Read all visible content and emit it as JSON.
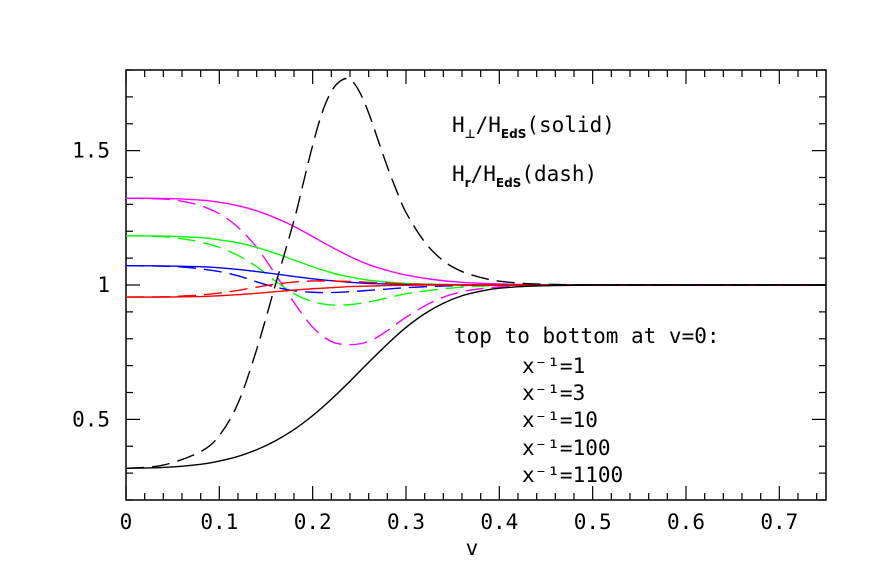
{
  "chart_data": {
    "type": "line",
    "xlabel": "v",
    "ylabel": "",
    "xlim": [
      0,
      0.75
    ],
    "ylim": [
      0.2,
      1.8
    ],
    "x_ticks": [
      "0",
      "0.1",
      "0.2",
      "0.3",
      "0.4",
      "0.5",
      "0.6",
      "0.7"
    ],
    "y_ticks": [
      "0.5",
      "1",
      "1.5"
    ],
    "grid": false,
    "legend": {
      "placement": "right",
      "heading": "top to bottom at v=0:",
      "entries": [
        "x⁻¹=1",
        "x⁻¹=3",
        "x⁻¹=10",
        "x⁻¹=100",
        "x⁻¹=1100"
      ]
    },
    "annotations": {
      "solid": {
        "main": "H",
        "main_sub": "⊥",
        "mid": "/H",
        "den_sub": "EdS",
        "tail": "(solid)"
      },
      "dash": {
        "main": "H",
        "main_sub": "r",
        "mid": "/H",
        "den_sub": "EdS",
        "tail": "(dash)"
      }
    },
    "series": [
      {
        "color": "#ff00ff",
        "dash": false,
        "x": [
          0,
          0.04,
          0.08,
          0.1,
          0.12,
          0.14,
          0.16,
          0.18,
          0.2,
          0.22,
          0.24,
          0.26,
          0.28,
          0.3,
          0.33,
          0.36,
          0.4,
          0.45,
          0.5,
          0.6,
          0.75
        ],
        "y": [
          1.323,
          1.322,
          1.316,
          1.308,
          1.295,
          1.276,
          1.25,
          1.218,
          1.18,
          1.142,
          1.106,
          1.076,
          1.054,
          1.037,
          1.02,
          1.01,
          1.004,
          1.001,
          1.0,
          1.0,
          1.0
        ]
      },
      {
        "color": "#ff00ff",
        "dash": true,
        "x": [
          0,
          0.04,
          0.06,
          0.08,
          0.1,
          0.12,
          0.14,
          0.16,
          0.18,
          0.2,
          0.22,
          0.24,
          0.26,
          0.28,
          0.3,
          0.33,
          0.36,
          0.4,
          0.45,
          0.5,
          0.75
        ],
        "y": [
          1.323,
          1.32,
          1.312,
          1.295,
          1.265,
          1.215,
          1.14,
          1.04,
          0.935,
          0.843,
          0.79,
          0.778,
          0.79,
          0.83,
          0.88,
          0.94,
          0.975,
          0.993,
          0.999,
          1.0,
          1.0
        ]
      },
      {
        "color": "#00ff00",
        "dash": false,
        "x": [
          0,
          0.04,
          0.08,
          0.1,
          0.12,
          0.14,
          0.16,
          0.18,
          0.2,
          0.22,
          0.24,
          0.26,
          0.28,
          0.3,
          0.33,
          0.36,
          0.4,
          0.45,
          0.5,
          0.75
        ],
        "y": [
          1.183,
          1.182,
          1.176,
          1.168,
          1.157,
          1.14,
          1.118,
          1.093,
          1.068,
          1.046,
          1.03,
          1.018,
          1.011,
          1.006,
          1.003,
          1.001,
          1.0,
          1.0,
          1.0,
          1.0
        ]
      },
      {
        "color": "#00ff00",
        "dash": true,
        "x": [
          0,
          0.04,
          0.06,
          0.08,
          0.1,
          0.12,
          0.14,
          0.16,
          0.18,
          0.2,
          0.22,
          0.24,
          0.26,
          0.28,
          0.3,
          0.33,
          0.36,
          0.4,
          0.45,
          0.75
        ],
        "y": [
          1.183,
          1.18,
          1.172,
          1.16,
          1.14,
          1.11,
          1.068,
          1.015,
          0.968,
          0.938,
          0.926,
          0.927,
          0.937,
          0.952,
          0.967,
          0.982,
          0.992,
          0.998,
          1.0,
          1.0
        ]
      },
      {
        "color": "#0000ff",
        "dash": false,
        "x": [
          0,
          0.04,
          0.08,
          0.1,
          0.12,
          0.14,
          0.16,
          0.18,
          0.2,
          0.22,
          0.24,
          0.26,
          0.28,
          0.3,
          0.33,
          0.36,
          0.4,
          0.45,
          0.75
        ],
        "y": [
          1.072,
          1.071,
          1.068,
          1.064,
          1.058,
          1.05,
          1.041,
          1.032,
          1.023,
          1.016,
          1.01,
          1.006,
          1.004,
          1.002,
          1.001,
          1.0,
          1.0,
          1.0,
          1.0
        ]
      },
      {
        "color": "#0000ff",
        "dash": true,
        "x": [
          0,
          0.04,
          0.06,
          0.08,
          0.1,
          0.12,
          0.14,
          0.16,
          0.18,
          0.2,
          0.22,
          0.24,
          0.26,
          0.28,
          0.3,
          0.33,
          0.36,
          0.4,
          0.45,
          0.75
        ],
        "y": [
          1.072,
          1.07,
          1.067,
          1.06,
          1.05,
          1.034,
          1.012,
          0.992,
          0.979,
          0.973,
          0.972,
          0.975,
          0.98,
          0.985,
          0.99,
          0.995,
          0.998,
          1.0,
          1.0,
          1.0
        ]
      },
      {
        "color": "#ff0000",
        "dash": false,
        "x": [
          0,
          0.04,
          0.08,
          0.1,
          0.12,
          0.14,
          0.16,
          0.18,
          0.2,
          0.22,
          0.24,
          0.26,
          0.28,
          0.3,
          0.33,
          0.36,
          0.4,
          0.45,
          0.75
        ],
        "y": [
          0.955,
          0.955,
          0.957,
          0.96,
          0.964,
          0.969,
          0.975,
          0.981,
          0.986,
          0.99,
          0.994,
          0.996,
          0.998,
          0.999,
          1.0,
          1.0,
          1.0,
          1.0,
          1.0
        ]
      },
      {
        "color": "#ff0000",
        "dash": true,
        "x": [
          0,
          0.04,
          0.06,
          0.08,
          0.1,
          0.12,
          0.14,
          0.16,
          0.18,
          0.2,
          0.22,
          0.24,
          0.26,
          0.28,
          0.3,
          0.33,
          0.36,
          0.4,
          0.75
        ],
        "y": [
          0.955,
          0.956,
          0.959,
          0.963,
          0.97,
          0.98,
          0.992,
          1.003,
          1.011,
          1.015,
          1.015,
          1.013,
          1.01,
          1.007,
          1.004,
          1.002,
          1.001,
          1.0,
          1.0
        ]
      },
      {
        "color": "#000000",
        "dash": false,
        "x": [
          0,
          0.04,
          0.08,
          0.1,
          0.12,
          0.14,
          0.16,
          0.18,
          0.2,
          0.22,
          0.24,
          0.26,
          0.28,
          0.3,
          0.32,
          0.34,
          0.36,
          0.38,
          0.4,
          0.43,
          0.46,
          0.5,
          0.55,
          0.75
        ],
        "y": [
          0.318,
          0.321,
          0.333,
          0.345,
          0.362,
          0.387,
          0.42,
          0.462,
          0.514,
          0.575,
          0.642,
          0.712,
          0.78,
          0.842,
          0.893,
          0.932,
          0.96,
          0.977,
          0.988,
          0.995,
          0.998,
          1.0,
          1.0,
          1.0
        ]
      },
      {
        "color": "#000000",
        "dash": true,
        "x": [
          0,
          0.04,
          0.08,
          0.1,
          0.12,
          0.14,
          0.16,
          0.18,
          0.19,
          0.2,
          0.21,
          0.22,
          0.23,
          0.24,
          0.25,
          0.26,
          0.27,
          0.28,
          0.29,
          0.3,
          0.32,
          0.34,
          0.36,
          0.38,
          0.4,
          0.43,
          0.46,
          0.5,
          0.55,
          0.75
        ],
        "y": [
          0.318,
          0.33,
          0.38,
          0.44,
          0.56,
          0.76,
          1.0,
          1.24,
          1.38,
          1.52,
          1.64,
          1.72,
          1.76,
          1.765,
          1.72,
          1.64,
          1.54,
          1.44,
          1.35,
          1.27,
          1.16,
          1.09,
          1.05,
          1.028,
          1.014,
          1.005,
          1.002,
          1.0,
          1.0,
          1.0
        ]
      }
    ]
  }
}
